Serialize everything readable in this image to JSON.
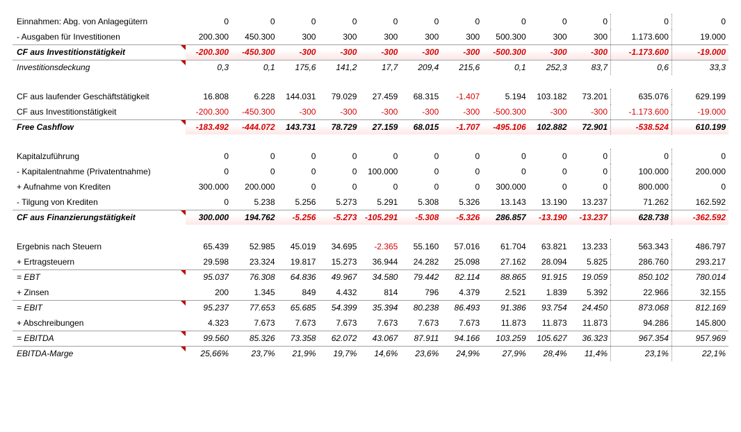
{
  "columns": 12,
  "style": {
    "neg_color": "#d40000",
    "gradient_start": "#ffffff",
    "gradient_end": "#fde6e6",
    "border_color": "#a0a0a0",
    "marker_color": "#c00000",
    "font_size": 12
  },
  "rows": [
    {
      "label": "Einnahmen: Abg. von Anlagegütern",
      "vals": [
        "0",
        "0",
        "0",
        "0",
        "0",
        "0",
        "0",
        "0",
        "0",
        "0",
        "0",
        "0"
      ]
    },
    {
      "label": "- Ausgaben für Investitionen",
      "vals": [
        "200.300",
        "450.300",
        "300",
        "300",
        "300",
        "300",
        "300",
        "500.300",
        "300",
        "300",
        "1.173.600",
        "19.000"
      ]
    },
    {
      "label": "CF aus Investitionstätigkeit",
      "vals": [
        "-200.300",
        "-450.300",
        "-300",
        "-300",
        "-300",
        "-300",
        "-300",
        "-500.300",
        "-300",
        "-300",
        "-1.173.600",
        "-19.000"
      ],
      "bold": true,
      "italic": true,
      "border_top": true,
      "gradient": true,
      "marker": true
    },
    {
      "label": "Investitionsdeckung",
      "vals": [
        "0,3",
        "0,1",
        "175,6",
        "141,2",
        "17,7",
        "209,4",
        "215,6",
        "0,1",
        "252,3",
        "83,7",
        "0,6",
        "33,3"
      ],
      "italic": true,
      "border_top": true,
      "marker": true
    },
    {
      "spacer": true
    },
    {
      "label": "CF aus laufender Geschäftstätigkeit",
      "vals": [
        "16.808",
        "6.228",
        "144.031",
        "79.029",
        "27.459",
        "68.315",
        "-1.407",
        "5.194",
        "103.182",
        "73.201",
        "635.076",
        "629.199"
      ]
    },
    {
      "label": "CF aus Investitionstätigkeit",
      "vals": [
        "-200.300",
        "-450.300",
        "-300",
        "-300",
        "-300",
        "-300",
        "-300",
        "-500.300",
        "-300",
        "-300",
        "-1.173.600",
        "-19.000"
      ]
    },
    {
      "label": "Free Cashflow",
      "vals": [
        "-183.492",
        "-444.072",
        "143.731",
        "78.729",
        "27.159",
        "68.015",
        "-1.707",
        "-495.106",
        "102.882",
        "72.901",
        "-538.524",
        "610.199"
      ],
      "bold": true,
      "italic": true,
      "border_top": true,
      "gradient": true,
      "marker": true
    },
    {
      "spacer": true
    },
    {
      "label": "Kapitalzuführung",
      "vals": [
        "0",
        "0",
        "0",
        "0",
        "0",
        "0",
        "0",
        "0",
        "0",
        "0",
        "0",
        "0"
      ]
    },
    {
      "label": "- Kapitalentnahme (Privatentnahme)",
      "vals": [
        "0",
        "0",
        "0",
        "0",
        "100.000",
        "0",
        "0",
        "0",
        "0",
        "0",
        "100.000",
        "200.000"
      ]
    },
    {
      "label": "+ Aufnahme von Krediten",
      "vals": [
        "300.000",
        "200.000",
        "0",
        "0",
        "0",
        "0",
        "0",
        "300.000",
        "0",
        "0",
        "800.000",
        "0"
      ]
    },
    {
      "label": "- Tilgung von Krediten",
      "vals": [
        "0",
        "5.238",
        "5.256",
        "5.273",
        "5.291",
        "5.308",
        "5.326",
        "13.143",
        "13.190",
        "13.237",
        "71.262",
        "162.592"
      ]
    },
    {
      "label": "CF aus Finanzierungstätigkeit",
      "vals": [
        "300.000",
        "194.762",
        "-5.256",
        "-5.273",
        "-105.291",
        "-5.308",
        "-5.326",
        "286.857",
        "-13.190",
        "-13.237",
        "628.738",
        "-362.592"
      ],
      "bold": true,
      "italic": true,
      "border_top": true,
      "gradient": true,
      "marker": true
    },
    {
      "spacer": true
    },
    {
      "label": "Ergebnis nach  Steuern",
      "vals": [
        "65.439",
        "52.985",
        "45.019",
        "34.695",
        "-2.365",
        "55.160",
        "57.016",
        "61.704",
        "63.821",
        "13.233",
        "563.343",
        "486.797"
      ]
    },
    {
      "label": "+ Ertragsteuern",
      "vals": [
        "29.598",
        "23.324",
        "19.817",
        "15.273",
        "36.944",
        "24.282",
        "25.098",
        "27.162",
        "28.094",
        "5.825",
        "286.760",
        "293.217"
      ]
    },
    {
      "label": "= EBT",
      "vals": [
        "95.037",
        "76.308",
        "64.836",
        "49.967",
        "34.580",
        "79.442",
        "82.114",
        "88.865",
        "91.915",
        "19.059",
        "850.102",
        "780.014"
      ],
      "italic": true,
      "border_top": true,
      "marker": true
    },
    {
      "label": "+ Zinsen",
      "vals": [
        "200",
        "1.345",
        "849",
        "4.432",
        "814",
        "796",
        "4.379",
        "2.521",
        "1.839",
        "5.392",
        "22.966",
        "32.155"
      ]
    },
    {
      "label": "= EBIT",
      "vals": [
        "95.237",
        "77.653",
        "65.685",
        "54.399",
        "35.394",
        "80.238",
        "86.493",
        "91.386",
        "93.754",
        "24.450",
        "873.068",
        "812.169"
      ],
      "italic": true,
      "border_top": true,
      "marker": true
    },
    {
      "label": "+ Abschreibungen",
      "vals": [
        "4.323",
        "7.673",
        "7.673",
        "7.673",
        "7.673",
        "7.673",
        "7.673",
        "11.873",
        "11.873",
        "11.873",
        "94.286",
        "145.800"
      ]
    },
    {
      "label": "= EBITDA",
      "vals": [
        "99.560",
        "85.326",
        "73.358",
        "62.072",
        "43.067",
        "87.911",
        "94.166",
        "103.259",
        "105.627",
        "36.323",
        "967.354",
        "957.969"
      ],
      "italic": true,
      "border_top": true,
      "marker": true
    },
    {
      "label": "EBITDA-Marge",
      "vals": [
        "25,66%",
        "23,7%",
        "21,9%",
        "19,7%",
        "14,6%",
        "23,6%",
        "24,9%",
        "27,9%",
        "28,4%",
        "11,4%",
        "23,1%",
        "22,1%"
      ],
      "italic": true,
      "border_top": true,
      "marker": true
    }
  ]
}
